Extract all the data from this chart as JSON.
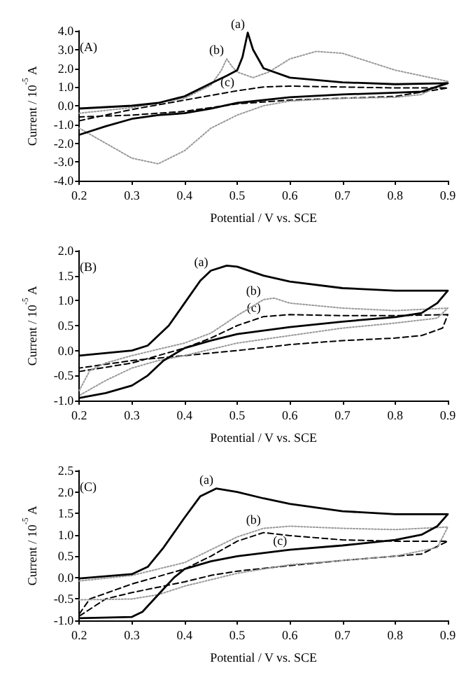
{
  "chart_data": [
    {
      "type": "line",
      "title": "(A)",
      "xlabel": "Potential / V vs. SCE",
      "ylabel": "Current / 10$^{-5}$ A",
      "xlim": [
        0.2,
        0.9
      ],
      "xticks": [
        0.2,
        0.3,
        0.4,
        0.5,
        0.6,
        0.7,
        0.8,
        0.9
      ],
      "ylim": [
        -4,
        4
      ],
      "yticks": [
        {
          "value": -4,
          "label": "-4.0"
        },
        {
          "value": -3,
          "label": "-3.0"
        },
        {
          "value": -2,
          "label": "-2.0"
        },
        {
          "value": -1,
          "label": "-1.0"
        },
        {
          "value": 0,
          "label": "0.0"
        },
        {
          "value": 1,
          "label": "1.0"
        },
        {
          "value": 2,
          "label": "2.0"
        },
        {
          "value": 3,
          "label": "3.0"
        },
        {
          "value": 4,
          "label": "4.0"
        }
      ],
      "grid": false,
      "marker": "none",
      "series": [
        {
          "color": "#000000",
          "line_style": "solid",
          "x": [
            0.2,
            0.3,
            0.35,
            0.4,
            0.45,
            0.48,
            0.5,
            0.51,
            0.52,
            0.53,
            0.55,
            0.6,
            0.7,
            0.8,
            0.9,
            0.85,
            0.8,
            0.7,
            0.6,
            0.5,
            0.45,
            0.4,
            0.35,
            0.3,
            0.25,
            0.2
          ],
          "values": [
            -0.15,
            0.0,
            0.15,
            0.5,
            1.2,
            1.6,
            1.9,
            2.6,
            3.9,
            3.0,
            2.0,
            1.5,
            1.25,
            1.15,
            1.2,
            0.75,
            0.7,
            0.6,
            0.45,
            0.15,
            -0.15,
            -0.4,
            -0.5,
            -0.7,
            -1.1,
            -1.55
          ]
        },
        {
          "color": "#999999",
          "line_style": "dotted",
          "x": [
            0.2,
            0.3,
            0.4,
            0.45,
            0.47,
            0.48,
            0.49,
            0.5,
            0.53,
            0.56,
            0.6,
            0.65,
            0.7,
            0.8,
            0.9,
            0.85,
            0.8,
            0.7,
            0.6,
            0.55,
            0.5,
            0.45,
            0.4,
            0.35,
            0.3,
            0.25,
            0.2
          ],
          "values": [
            -0.4,
            -0.1,
            0.4,
            1.1,
            1.9,
            2.5,
            2.1,
            1.8,
            1.5,
            1.8,
            2.5,
            2.9,
            2.8,
            1.9,
            1.3,
            0.6,
            0.45,
            0.4,
            0.25,
            0.0,
            -0.5,
            -1.2,
            -2.4,
            -3.1,
            -2.8,
            -2.0,
            -1.2
          ]
        },
        {
          "color": "#000000",
          "line_style": "dashed",
          "x": [
            0.2,
            0.3,
            0.4,
            0.5,
            0.55,
            0.6,
            0.7,
            0.8,
            0.9,
            0.8,
            0.7,
            0.6,
            0.5,
            0.45,
            0.4,
            0.3,
            0.2
          ],
          "values": [
            -0.8,
            -0.2,
            0.3,
            0.8,
            1.0,
            1.05,
            1.0,
            0.95,
            0.95,
            0.5,
            0.4,
            0.3,
            0.1,
            -0.1,
            -0.3,
            -0.5,
            -0.6
          ]
        }
      ],
      "annotations": [
        {
          "text": "(a)",
          "x": 0.52,
          "y": 3.9
        },
        {
          "text": "(b)",
          "x": 0.48,
          "y": 2.5
        },
        {
          "text": "(c)",
          "x": 0.5,
          "y": 0.8
        }
      ]
    },
    {
      "type": "line",
      "title": "(B)",
      "xlabel": "Potential / V vs. SCE",
      "ylabel": "Current / 10$^{-5}$ A",
      "xlim": [
        0.2,
        0.9
      ],
      "xticks": [
        0.2,
        0.3,
        0.4,
        0.5,
        0.6,
        0.7,
        0.8,
        0.9
      ],
      "ylim": [
        -1,
        2
      ],
      "yticks": [
        {
          "value": -1,
          "label": "-1.0"
        },
        -0.5,
        {
          "value": 0,
          "label": "0.0"
        },
        0.5,
        {
          "value": 1,
          "label": "1.0"
        },
        1.5,
        {
          "value": 2,
          "label": "2.0"
        }
      ],
      "grid": false,
      "marker": "none",
      "series": [
        {
          "color": "#000000",
          "line_style": "solid",
          "x": [
            0.2,
            0.3,
            0.33,
            0.37,
            0.4,
            0.43,
            0.45,
            0.48,
            0.5,
            0.55,
            0.6,
            0.7,
            0.8,
            0.9,
            0.88,
            0.85,
            0.8,
            0.7,
            0.6,
            0.5,
            0.45,
            0.4,
            0.36,
            0.33,
            0.3,
            0.25,
            0.2
          ],
          "values": [
            -0.1,
            0.0,
            0.1,
            0.5,
            0.95,
            1.4,
            1.6,
            1.7,
            1.68,
            1.5,
            1.38,
            1.25,
            1.2,
            1.2,
            0.95,
            0.75,
            0.67,
            0.58,
            0.47,
            0.33,
            0.2,
            0.05,
            -0.2,
            -0.5,
            -0.7,
            -0.85,
            -0.95
          ]
        },
        {
          "color": "#999999",
          "line_style": "dotted",
          "x": [
            0.2,
            0.22,
            0.25,
            0.3,
            0.4,
            0.45,
            0.5,
            0.55,
            0.57,
            0.6,
            0.7,
            0.8,
            0.9,
            0.88,
            0.8,
            0.7,
            0.6,
            0.5,
            0.4,
            0.35,
            0.3,
            0.25,
            0.2
          ],
          "values": [
            -0.8,
            -0.4,
            -0.25,
            -0.1,
            0.15,
            0.35,
            0.7,
            1.02,
            1.05,
            0.95,
            0.85,
            0.8,
            0.85,
            0.65,
            0.55,
            0.45,
            0.3,
            0.15,
            -0.1,
            -0.2,
            -0.35,
            -0.6,
            -0.9
          ]
        },
        {
          "color": "#000000",
          "line_style": "dashed",
          "x": [
            0.2,
            0.3,
            0.4,
            0.45,
            0.5,
            0.55,
            0.6,
            0.7,
            0.8,
            0.9,
            0.89,
            0.85,
            0.8,
            0.7,
            0.6,
            0.5,
            0.4,
            0.3,
            0.2
          ],
          "values": [
            -0.42,
            -0.25,
            0.05,
            0.25,
            0.5,
            0.68,
            0.72,
            0.7,
            0.7,
            0.72,
            0.45,
            0.3,
            0.25,
            0.2,
            0.12,
            0.0,
            -0.1,
            -0.2,
            -0.35
          ]
        }
      ],
      "annotations": [
        {
          "text": "(a)",
          "x": 0.45,
          "y": 1.6
        },
        {
          "text": "(b)",
          "x": 0.55,
          "y": 1.02
        },
        {
          "text": "(c)",
          "x": 0.55,
          "y": 0.68
        }
      ]
    },
    {
      "type": "line",
      "title": "(C)",
      "xlabel": "Potential / V vs. SCE",
      "ylabel": "Current / 10$^{-5}$ A",
      "xlim": [
        0.2,
        0.9
      ],
      "xticks": [
        0.2,
        0.3,
        0.4,
        0.5,
        0.6,
        0.7,
        0.8,
        0.9
      ],
      "ylim": [
        -1,
        2.5
      ],
      "yticks": [
        {
          "value": -1,
          "label": "-1.0"
        },
        -0.5,
        {
          "value": 0,
          "label": "0.0"
        },
        0.5,
        {
          "value": 1,
          "label": "1.0"
        },
        1.5,
        {
          "value": 2,
          "label": "2.0"
        },
        2.5
      ],
      "grid": false,
      "marker": "none",
      "series": [
        {
          "color": "#000000",
          "line_style": "solid",
          "x": [
            0.2,
            0.3,
            0.33,
            0.36,
            0.4,
            0.43,
            0.46,
            0.5,
            0.55,
            0.6,
            0.7,
            0.8,
            0.9,
            0.88,
            0.85,
            0.8,
            0.7,
            0.6,
            0.5,
            0.45,
            0.4,
            0.38,
            0.35,
            0.32,
            0.3,
            0.2
          ],
          "values": [
            -0.02,
            0.08,
            0.25,
            0.7,
            1.4,
            1.9,
            2.08,
            2.0,
            1.85,
            1.72,
            1.55,
            1.48,
            1.48,
            1.2,
            1.0,
            0.88,
            0.75,
            0.65,
            0.5,
            0.38,
            0.2,
            0.0,
            -0.4,
            -0.8,
            -0.92,
            -0.95
          ]
        },
        {
          "color": "#999999",
          "line_style": "dotted",
          "x": [
            0.2,
            0.3,
            0.4,
            0.45,
            0.5,
            0.55,
            0.6,
            0.7,
            0.8,
            0.9,
            0.88,
            0.8,
            0.7,
            0.6,
            0.5,
            0.4,
            0.35,
            0.3,
            0.2
          ],
          "values": [
            -0.08,
            0.05,
            0.35,
            0.65,
            0.95,
            1.15,
            1.2,
            1.15,
            1.12,
            1.18,
            0.7,
            0.5,
            0.4,
            0.3,
            0.1,
            -0.2,
            -0.4,
            -0.5,
            -0.52
          ]
        },
        {
          "color": "#000000",
          "line_style": "dashed",
          "x": [
            0.2,
            0.22,
            0.3,
            0.4,
            0.45,
            0.5,
            0.55,
            0.6,
            0.7,
            0.8,
            0.9,
            0.85,
            0.8,
            0.7,
            0.6,
            0.5,
            0.45,
            0.4,
            0.3,
            0.25,
            0.2
          ],
          "values": [
            -0.85,
            -0.5,
            -0.15,
            0.2,
            0.5,
            0.85,
            1.05,
            0.98,
            0.88,
            0.85,
            0.85,
            0.55,
            0.5,
            0.4,
            0.28,
            0.15,
            0.05,
            -0.1,
            -0.35,
            -0.5,
            -0.9
          ]
        }
      ],
      "annotations": [
        {
          "text": "(a)",
          "x": 0.46,
          "y": 2.08
        },
        {
          "text": "(b)",
          "x": 0.55,
          "y": 1.15
        },
        {
          "text": "(c)",
          "x": 0.6,
          "y": 0.65
        }
      ]
    }
  ]
}
